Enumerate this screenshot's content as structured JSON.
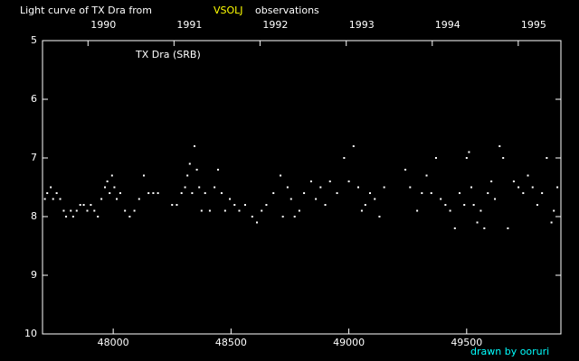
{
  "chart_data": {
    "type": "scatter",
    "title": "Light curve of TX Dra from",
    "title_source": "VSOLJ",
    "title_end": "observations",
    "annotation": "TX Dra (SRB)",
    "credit": "drawn by ooruri",
    "color": "#ffffff",
    "source_color": "#ffff00",
    "credit_color": "#00ffff",
    "invert_y": true,
    "xlim": [
      47700,
      49900
    ],
    "ylim": [
      5,
      10
    ],
    "xticks": [
      48000,
      48500,
      49000,
      49500
    ],
    "yticks": [
      5,
      6,
      7,
      8,
      9,
      10
    ],
    "x2ticks": [
      {
        "value": 47893,
        "label": "1990"
      },
      {
        "value": 48258,
        "label": "1991"
      },
      {
        "value": 48623,
        "label": "1992"
      },
      {
        "value": 48989,
        "label": "1993"
      },
      {
        "value": 49354,
        "label": "1994"
      },
      {
        "value": 49719,
        "label": "1995"
      }
    ],
    "x": [
      47710,
      47720,
      47735,
      47745,
      47760,
      47775,
      47790,
      47800,
      47820,
      47830,
      47845,
      47860,
      47875,
      47890,
      47905,
      47920,
      47935,
      47950,
      47965,
      47975,
      47985,
      47995,
      48005,
      48015,
      48030,
      48050,
      48070,
      48090,
      48110,
      48130,
      48150,
      48170,
      48190,
      48250,
      48270,
      48290,
      48305,
      48315,
      48325,
      48335,
      48345,
      48355,
      48365,
      48375,
      48390,
      48410,
      48430,
      48445,
      48460,
      48475,
      48495,
      48515,
      48535,
      48560,
      48590,
      48610,
      48630,
      48650,
      48680,
      48710,
      48720,
      48740,
      48755,
      48770,
      48790,
      48810,
      48840,
      48860,
      48880,
      48900,
      48920,
      48950,
      48980,
      49000,
      49020,
      49040,
      49055,
      49070,
      49090,
      49110,
      49130,
      49150,
      49240,
      49260,
      49290,
      49310,
      49330,
      49350,
      49370,
      49390,
      49410,
      49430,
      49450,
      49470,
      49490,
      49500,
      49510,
      49520,
      49530,
      49545,
      49560,
      49575,
      49590,
      49605,
      49620,
      49640,
      49655,
      49675,
      49700,
      49720,
      49740,
      49760,
      49780,
      49800,
      49820,
      49840,
      49860,
      49870,
      49885
    ],
    "values": [
      7.7,
      7.6,
      7.5,
      7.7,
      7.6,
      7.7,
      7.9,
      8.0,
      7.9,
      8.0,
      7.9,
      7.8,
      7.8,
      7.9,
      7.8,
      7.9,
      8.0,
      7.7,
      7.5,
      7.4,
      7.6,
      7.3,
      7.5,
      7.7,
      7.6,
      7.9,
      8.0,
      7.9,
      7.7,
      7.3,
      7.6,
      7.6,
      7.6,
      7.8,
      7.8,
      7.6,
      7.5,
      7.3,
      7.1,
      7.6,
      6.8,
      7.2,
      7.5,
      7.9,
      7.6,
      7.9,
      7.5,
      7.2,
      7.6,
      7.9,
      7.7,
      7.8,
      7.9,
      7.8,
      8.0,
      8.1,
      7.9,
      7.8,
      7.6,
      7.3,
      8.0,
      7.5,
      7.7,
      8.0,
      7.9,
      7.6,
      7.4,
      7.7,
      7.5,
      7.8,
      7.4,
      7.6,
      7.0,
      7.4,
      6.8,
      7.5,
      7.9,
      7.8,
      7.6,
      7.7,
      8.0,
      7.5,
      7.2,
      7.5,
      7.9,
      7.6,
      7.3,
      7.6,
      7.0,
      7.7,
      7.8,
      7.9,
      8.2,
      7.6,
      7.8,
      7.0,
      6.9,
      7.5,
      7.8,
      8.1,
      7.9,
      8.2,
      7.6,
      7.4,
      7.7,
      6.8,
      7.0,
      8.2,
      7.4,
      7.5,
      7.6,
      7.3,
      7.5,
      7.8,
      7.6,
      7.0,
      8.1,
      7.9,
      7.5
    ]
  }
}
